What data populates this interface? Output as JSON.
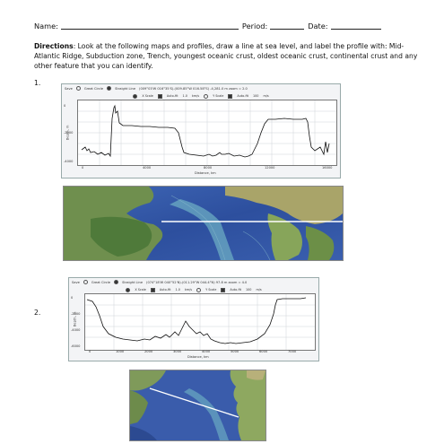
{
  "header": {
    "name_label": "Name:",
    "period_label": "Period:",
    "date_label": "Date:"
  },
  "directions": {
    "label": "Directions",
    "text": ": Look at the following maps and profiles, draw a line at sea level, and label the profile with: Mid-Atlantic Ridge, Subduction zone, Trench, youngest oceanic crust, oldest oceanic crust, continental crust and any other feature that you can identify."
  },
  "items": [
    {
      "number": "1.",
      "toolbar": {
        "save": "Save",
        "great_circle": "Great Circle",
        "straight_line": "Straight Line",
        "coords": "(009°03'W 016°35'S)-(009.85°W 016.58°S) -4,281.0 m  zoom = 2.0",
        "x_scale": "X Scale",
        "auto_fit": "Auto-fit",
        "x_value": "1.0",
        "vert_sep": "km/s",
        "y_scale": "Y Scale",
        "auto_fit_y": "Auto-fit",
        "y_value": "100",
        "units": "m/s"
      },
      "ylabel": "Depth, m",
      "xlabel": "Distance, km",
      "yticks": [
        "-4000",
        "-2000",
        "0"
      ],
      "xticks": [
        "0",
        "4000",
        "8000",
        "12000",
        "16000"
      ]
    },
    {
      "number": "2.",
      "toolbar": {
        "save": "Save",
        "great_circle": "Great Circle",
        "straight_line": "Straight Line",
        "coords": "(074°18'W 040°52'N)-(011.29°W 044.4°N)  97.8 m  zoom = 4.0",
        "x_scale": "X Scale",
        "auto_fit": "Auto-fit",
        "x_value": "1.0",
        "vert_sep": "km/s",
        "y_scale": "Y Scale",
        "auto_fit_y": "Auto-fit",
        "y_value": "100",
        "units": "m/s"
      },
      "ylabel": "Depth, m",
      "xlabel": "Distance, km",
      "yticks": [
        "-6000",
        "-4000",
        "-2000",
        "0"
      ],
      "xticks": [
        "0",
        "1000",
        "2000",
        "3000",
        "4000",
        "5000",
        "6000",
        "7000"
      ]
    }
  ]
}
